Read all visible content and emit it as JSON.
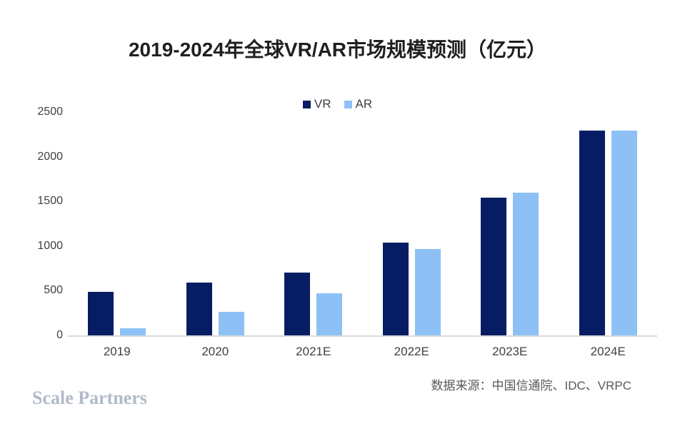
{
  "title": "2019-2024年全球VR/AR市场规模预测（亿元）",
  "chart_data": {
    "type": "bar",
    "title": "2019-2024年全球VR/AR市场规模预测（亿元）",
    "categories": [
      "2019",
      "2020",
      "2021E",
      "2022E",
      "2023E",
      "2024E"
    ],
    "series": [
      {
        "name": "VR",
        "color": "#061d63",
        "values": [
          485,
          595,
          700,
          1035,
          1545,
          2295
        ]
      },
      {
        "name": "AR",
        "color": "#8dc1f6",
        "values": [
          80,
          265,
          475,
          970,
          1595,
          2295
        ]
      }
    ],
    "xlabel": "",
    "ylabel": "",
    "ylim": [
      0,
      2500
    ],
    "yticks": [
      0,
      500,
      1000,
      1500,
      2000,
      2500
    ],
    "grid": false,
    "legend_position": "top-center"
  },
  "source_note": "数据来源：中国信通院、IDC、VRPC",
  "watermark": "Scale Partners",
  "colors": {
    "background": "#ffffff",
    "axis_line": "#d9d9d9",
    "tick_label": "#404040",
    "title_text": "#1f1f1f",
    "source_text": "#595959",
    "watermark_text": "#b1bac8"
  }
}
